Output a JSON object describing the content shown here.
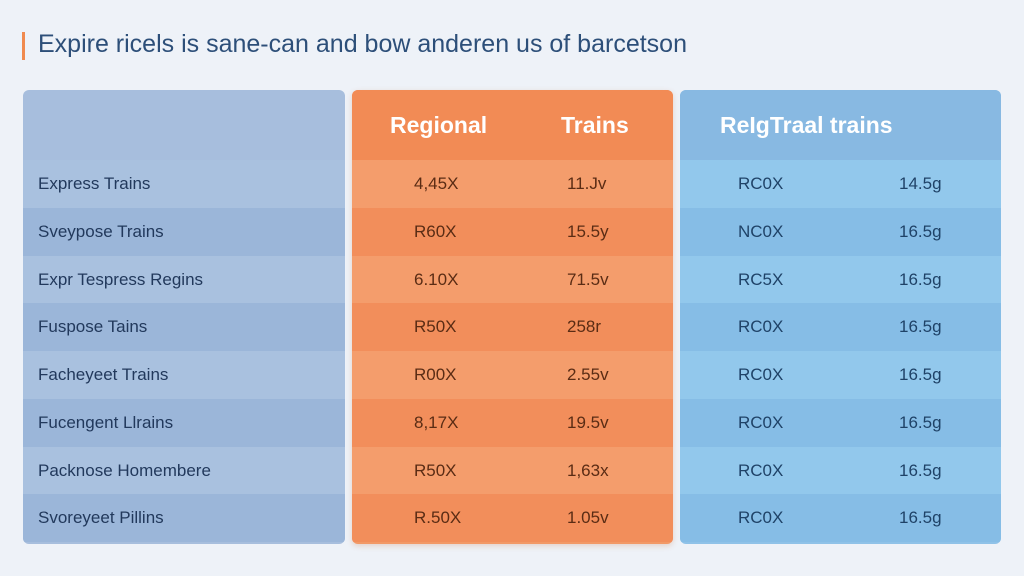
{
  "chart_data": {
    "type": "table",
    "title": "Expire ricels is sane-can and bow anderen us of barcetson",
    "group_headers": {
      "regional_left": "Regional",
      "regional_right": "Trains",
      "other": "ReIgTraal trains"
    },
    "rows": [
      {
        "label": "Express Trains",
        "regional": "4,45X",
        "trains": "11.Jv",
        "rel_a": "RC0X",
        "rel_b": "14.5g"
      },
      {
        "label": "Sveypose Trains",
        "regional": "R60X",
        "trains": "15.5y",
        "rel_a": "NC0X",
        "rel_b": "16.5g"
      },
      {
        "label": "Expr Tespress Regins",
        "regional": "6.10X",
        "trains": "71.5v",
        "rel_a": "RC5X",
        "rel_b": "16.5g"
      },
      {
        "label": "Fuspose Tains",
        "regional": "R50X",
        "trains": "258r",
        "rel_a": "RC0X",
        "rel_b": "16.5g"
      },
      {
        "label": "Facheyeet Trains",
        "regional": "R00X",
        "trains": "2.55v",
        "rel_a": "RC0X",
        "rel_b": "16.5g"
      },
      {
        "label": "Fucengent Llrains",
        "regional": "8,17X",
        "trains": "19.5v",
        "rel_a": "RC0X",
        "rel_b": "16.5g"
      },
      {
        "label": "Packnose Homembere",
        "regional": "R50X",
        "trains": "1,63x",
        "rel_a": "RC0X",
        "rel_b": "16.5g"
      },
      {
        "label": "Svoreyeet Pillins",
        "regional": "R.50X",
        "trains": "1.05v",
        "rel_a": "RC0X",
        "rel_b": "16.5g"
      }
    ],
    "colors": {
      "left_panel": "#a7bedd",
      "regional_panel": "#f29967",
      "rel_panel": "#8fc2e8",
      "accent": "#f08a4f"
    }
  }
}
